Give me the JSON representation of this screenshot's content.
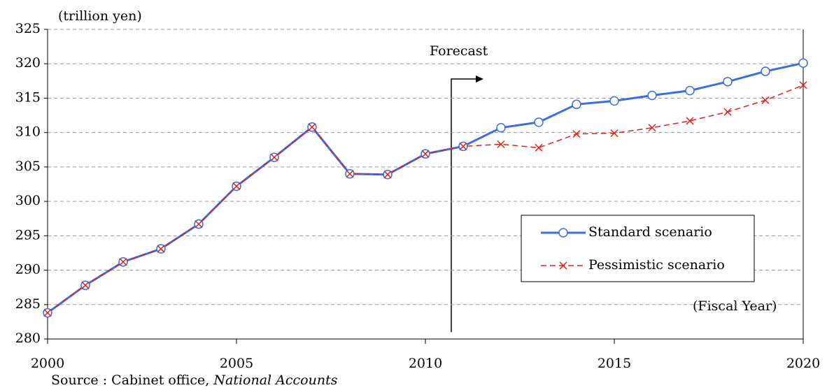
{
  "chart_data": {
    "type": "line",
    "y_label": "(trillion yen)",
    "x_label": "(Fiscal Year)",
    "annotation": "Forecast",
    "source": "Source : Cabinet office,",
    "source_italic": "National Accounts",
    "x": [
      2000,
      2001,
      2002,
      2003,
      2004,
      2005,
      2006,
      2007,
      2008,
      2009,
      2010,
      2011,
      2012,
      2013,
      2014,
      2015,
      2016,
      2017,
      2018,
      2019,
      2020
    ],
    "series": [
      {
        "name": "Standard scenario",
        "color": "#3a6fe0",
        "marker": "circle",
        "dashed": false,
        "values": [
          283.8,
          287.8,
          291.2,
          293.1,
          296.7,
          302.2,
          306.4,
          310.8,
          304.0,
          303.9,
          306.9,
          308.0,
          310.7,
          311.5,
          314.1,
          314.6,
          315.4,
          316.1,
          317.4,
          318.9,
          320.1
        ]
      },
      {
        "name": "Pessimistic scenario",
        "color": "#e0201c",
        "marker": "x",
        "dashed": true,
        "values": [
          283.8,
          287.8,
          291.2,
          293.1,
          296.7,
          302.2,
          306.4,
          310.8,
          304.0,
          303.9,
          306.9,
          308.0,
          308.3,
          307.8,
          309.8,
          309.9,
          310.7,
          311.7,
          313.0,
          314.7,
          316.9
        ]
      }
    ],
    "xlim": [
      2000,
      2020
    ],
    "xticks": [
      2000,
      2005,
      2010,
      2015,
      2020
    ],
    "ylim": [
      280,
      325
    ],
    "yticks": [
      280,
      285,
      290,
      295,
      300,
      305,
      310,
      315,
      320,
      325
    ],
    "grid": true,
    "legend": "right"
  }
}
